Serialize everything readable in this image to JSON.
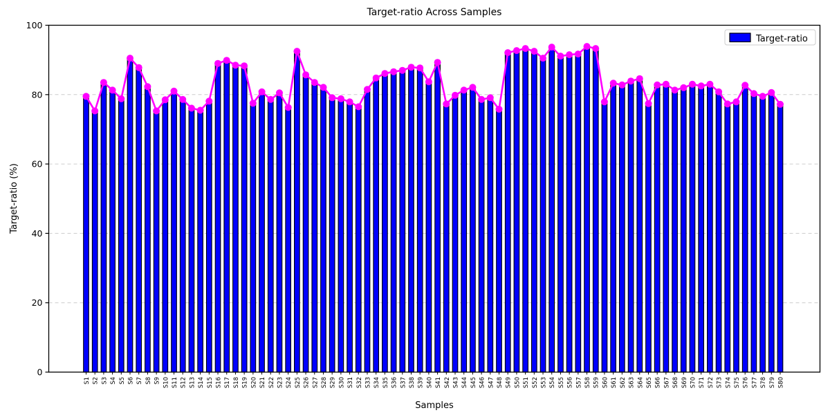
{
  "chart_data": {
    "type": "bar",
    "overlay": "line",
    "title": "Target-ratio Across Samples",
    "xlabel": "Samples",
    "ylabel": "Target-ratio (%)",
    "ylim": [
      0,
      100
    ],
    "yticks": [
      0,
      20,
      40,
      60,
      80,
      100
    ],
    "grid": "horizontal-dashed",
    "bar_color": "#0000ff",
    "bar_edge_color": "#000000",
    "line_color": "#ff00ff",
    "grid_color": "#cccccc",
    "legend": {
      "label": "Target-ratio",
      "position": "upper right"
    },
    "categories": [
      "S1",
      "S2",
      "S3",
      "S4",
      "S5",
      "S6",
      "S7",
      "S8",
      "S9",
      "S10",
      "S11",
      "S12",
      "S13",
      "S14",
      "S15",
      "S16",
      "S17",
      "S18",
      "S19",
      "S20",
      "S21",
      "S22",
      "S23",
      "S24",
      "S25",
      "S26",
      "S27",
      "S28",
      "S29",
      "S30",
      "S31",
      "S32",
      "S33",
      "S34",
      "S35",
      "S36",
      "S37",
      "S38",
      "S39",
      "S40",
      "S41",
      "S42",
      "S43",
      "S44",
      "S45",
      "S46",
      "S47",
      "S48",
      "S49",
      "S50",
      "S51",
      "S52",
      "S53",
      "S54",
      "S55",
      "S56",
      "S57",
      "S58",
      "S59",
      "S60",
      "S61",
      "S62",
      "S63",
      "S64",
      "S65",
      "S66",
      "S67",
      "S68",
      "S69",
      "S70",
      "S71",
      "S72",
      "S73",
      "S74",
      "S75",
      "S76",
      "S77",
      "S78",
      "S79",
      "S80"
    ],
    "values": [
      79.5,
      75.3,
      83.5,
      81.3,
      78.8,
      90.5,
      87.8,
      82.3,
      75.3,
      78.5,
      81.0,
      78.6,
      76.1,
      75.5,
      78.1,
      89.0,
      89.9,
      88.5,
      88.3,
      77.5,
      80.8,
      78.6,
      80.5,
      76.3,
      92.5,
      85.7,
      83.5,
      82.1,
      79.1,
      78.8,
      77.9,
      76.5,
      81.5,
      84.8,
      86.1,
      86.6,
      87.0,
      87.9,
      87.7,
      83.7,
      89.3,
      77.3,
      79.8,
      81.3,
      82.1,
      78.6,
      79.1,
      75.8,
      92.1,
      92.7,
      93.3,
      92.5,
      90.5,
      93.7,
      91.1,
      91.5,
      91.7,
      93.9,
      93.3,
      77.9,
      83.3,
      82.8,
      83.9,
      84.6,
      77.4,
      82.8,
      83.0,
      81.3,
      82.0,
      83.0,
      82.5,
      83.0,
      80.8,
      77.3,
      77.9,
      82.7,
      80.3,
      79.5,
      80.6,
      77.2
    ]
  }
}
